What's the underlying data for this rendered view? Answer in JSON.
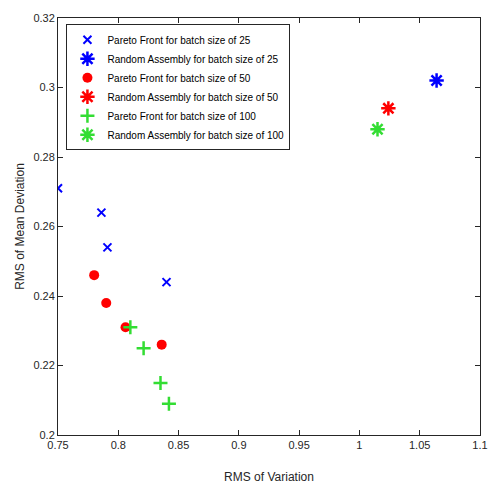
{
  "chart_data": {
    "type": "scatter",
    "x_label": "RMS of Variation",
    "y_label": "RMS of Mean Deviation",
    "xlim": [
      0.75,
      1.1
    ],
    "xticks": [
      0.75,
      0.8,
      0.85,
      0.9,
      0.95,
      1,
      1.05,
      1.1
    ],
    "ylim": [
      0.2,
      0.32
    ],
    "yticks": [
      0.2,
      0.22,
      0.24,
      0.26,
      0.28,
      0.3,
      0.32
    ],
    "grid": false,
    "legend": "upper left",
    "series": [
      {
        "name": "Pareto Front for batch size of 25",
        "color": "#0000ff",
        "marker": "x",
        "x": [
          0.75,
          0.786,
          0.791,
          0.84
        ],
        "values": [
          0.271,
          0.264,
          0.254,
          0.244
        ]
      },
      {
        "name": "Random Assembly for batch size of 25",
        "color": "#0000ff",
        "marker": "asterisk",
        "x": [
          1.064
        ],
        "values": [
          0.302
        ]
      },
      {
        "name": "Pareto Front for batch size of 50",
        "color": "#ff0000",
        "marker": "circle",
        "x": [
          0.78,
          0.79,
          0.806,
          0.836
        ],
        "values": [
          0.246,
          0.238,
          0.231,
          0.226
        ]
      },
      {
        "name": "Random Assembly for batch size of 50",
        "color": "#ff0000",
        "marker": "asterisk",
        "x": [
          1.024
        ],
        "values": [
          0.294
        ]
      },
      {
        "name": "Pareto Front for batch size of 100",
        "color": "#33dd33",
        "marker": "plus",
        "x": [
          0.81,
          0.821,
          0.835,
          0.842
        ],
        "values": [
          0.231,
          0.225,
          0.215,
          0.209
        ]
      },
      {
        "name": "Random Assembly for batch size of 100",
        "color": "#33dd33",
        "marker": "asterisk",
        "x": [
          1.015
        ],
        "values": [
          0.288
        ]
      }
    ]
  }
}
